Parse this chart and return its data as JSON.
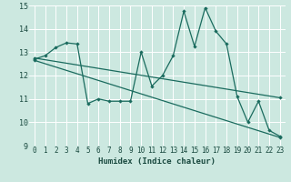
{
  "title": "",
  "xlabel": "Humidex (Indice chaleur)",
  "ylabel": "",
  "xlim": [
    -0.5,
    23.5
  ],
  "ylim": [
    9,
    15
  ],
  "yticks": [
    9,
    10,
    11,
    12,
    13,
    14,
    15
  ],
  "xticks": [
    0,
    1,
    2,
    3,
    4,
    5,
    6,
    7,
    8,
    9,
    10,
    11,
    12,
    13,
    14,
    15,
    16,
    17,
    18,
    19,
    20,
    21,
    22,
    23
  ],
  "xtick_labels": [
    "0",
    "1",
    "2",
    "3",
    "4",
    "5",
    "6",
    "7",
    "8",
    "9",
    "10",
    "11",
    "12",
    "13",
    "14",
    "15",
    "16",
    "17",
    "18",
    "19",
    "20",
    "21",
    "22",
    "23"
  ],
  "bg_color": "#cce8e0",
  "line_color": "#1a6b5e",
  "grid_color": "#ffffff",
  "line1_x": [
    0,
    1,
    2,
    3,
    4,
    5,
    6,
    7,
    8,
    9,
    10,
    11,
    12,
    13,
    14,
    15,
    16,
    17,
    18,
    19,
    20,
    21,
    22,
    23
  ],
  "line1_y": [
    12.7,
    12.85,
    13.2,
    13.4,
    13.35,
    10.8,
    11.0,
    10.9,
    10.9,
    10.9,
    13.0,
    11.55,
    12.0,
    12.85,
    14.75,
    13.25,
    14.9,
    13.9,
    13.35,
    11.1,
    10.0,
    10.9,
    9.65,
    9.4
  ],
  "line2_x": [
    0,
    23
  ],
  "line2_y": [
    12.75,
    11.05
  ],
  "line3_x": [
    0,
    23
  ],
  "line3_y": [
    12.65,
    9.35
  ],
  "marker_size": 2.2,
  "line_width": 0.9,
  "xlabel_fontsize": 6.5,
  "tick_fontsize": 5.5
}
